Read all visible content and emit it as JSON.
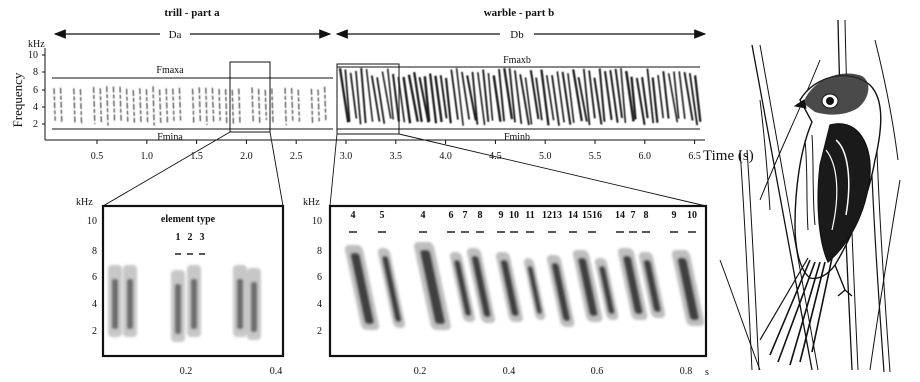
{
  "top": {
    "section_a_label": "trill - part a",
    "section_b_label": "warble - part b",
    "duration_a_label": "Da",
    "duration_b_label": "Db",
    "y_unit": "kHz",
    "y_title": "Frequency",
    "y_ticks": [
      "10",
      "8",
      "6",
      "4",
      "2"
    ],
    "x_ticks": [
      "0.5",
      "1.0",
      "1.5",
      "2.0",
      "2.5",
      "3.0",
      "3.5",
      "4.0",
      "4.5",
      "5.0",
      "5.5",
      "6.0",
      "6.5"
    ],
    "x_title": "Time (s)",
    "fmax_a": "Fmaxa",
    "fmin_a": "Fmina",
    "fmax_b": "Fmaxb",
    "fmin_b": "Fminb"
  },
  "left_panel": {
    "y_unit": "kHz",
    "y_ticks": [
      "10",
      "8",
      "6",
      "4",
      "2"
    ],
    "x_ticks": [
      "0.2",
      "0.4"
    ],
    "title": "element type",
    "element_numbers": [
      "1",
      "2",
      "3"
    ]
  },
  "right_panel": {
    "y_unit": "kHz",
    "y_ticks": [
      "10",
      "8",
      "6",
      "4",
      "2"
    ],
    "x_ticks": [
      "0.2",
      "0.4",
      "0.6",
      "0.8"
    ],
    "x_unit": "s",
    "element_numbers": [
      "4",
      "5",
      "4",
      "6",
      "7",
      "8",
      "9",
      "10",
      "11",
      "1213",
      "14",
      "1516",
      "14",
      "7",
      "8",
      "9",
      "10"
    ]
  },
  "illustration": {
    "icon": "bird-on-reed-illustration"
  }
}
